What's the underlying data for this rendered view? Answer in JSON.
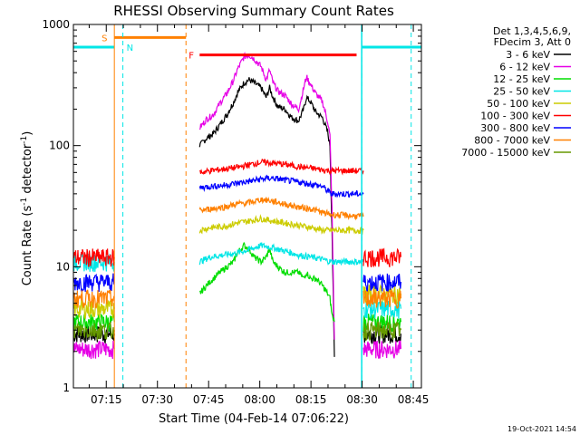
{
  "chart_data": {
    "type": "line",
    "title": "RHESSI Observing Summary Count Rates",
    "xlabel": "Start Time (04-Feb-14 07:06:22)",
    "ylabel_main": "Count Rate (s",
    "ylabel_sup1": "-1",
    "ylabel_mid": " detector",
    "ylabel_sup2": "-1",
    "ylabel_end": ")",
    "yscale": "log",
    "ylim": [
      1,
      1000
    ],
    "xlim_minutes": [
      0,
      102
    ],
    "x_ticks": [
      {
        "m": 9.63,
        "label": "07:15"
      },
      {
        "m": 24.63,
        "label": "07:30"
      },
      {
        "m": 39.63,
        "label": "07:45"
      },
      {
        "m": 54.63,
        "label": "08:00"
      },
      {
        "m": 69.63,
        "label": "08:15"
      },
      {
        "m": 84.63,
        "label": "08:30"
      },
      {
        "m": 99.63,
        "label": "08:45"
      }
    ],
    "y_ticks": [
      {
        "v": 1,
        "label": "1"
      },
      {
        "v": 10,
        "label": "10"
      },
      {
        "v": 100,
        "label": "100"
      },
      {
        "v": 1000,
        "label": "1000"
      }
    ],
    "legend_header": [
      "Det 1,3,4,5,6,9,",
      "FDecim 3, Att 0"
    ],
    "legend_placement": "right",
    "series": [
      {
        "name": "3 - 6 keV",
        "color": "#000000",
        "points": [
          [
            37,
            100
          ],
          [
            39,
            115
          ],
          [
            41,
            125
          ],
          [
            43,
            150
          ],
          [
            45,
            180
          ],
          [
            47,
            230
          ],
          [
            48,
            270
          ],
          [
            50,
            330
          ],
          [
            51.5,
            350
          ],
          [
            53,
            330
          ],
          [
            55,
            300
          ],
          [
            56.5,
            250
          ],
          [
            57.5,
            300
          ],
          [
            58.5,
            250
          ],
          [
            60,
            210
          ],
          [
            62,
            200
          ],
          [
            64,
            170
          ],
          [
            66,
            160
          ],
          [
            67.5,
            200
          ],
          [
            68.3,
            250
          ],
          [
            69.5,
            230
          ],
          [
            71,
            190
          ],
          [
            73,
            170
          ],
          [
            74.5,
            130
          ],
          [
            75.2,
            100
          ],
          [
            75.8,
            20
          ],
          [
            76.5,
            1.8
          ]
        ],
        "pre": {
          "range": [
            0,
            12
          ],
          "level": 2.8
        },
        "post": {
          "range": [
            85,
            96
          ],
          "level": 2.8
        }
      },
      {
        "name": "6 - 12 keV",
        "color": "#e600e6",
        "points": [
          [
            37,
            140
          ],
          [
            39,
            165
          ],
          [
            41,
            180
          ],
          [
            43,
            225
          ],
          [
            45,
            270
          ],
          [
            47,
            350
          ],
          [
            48,
            420
          ],
          [
            50,
            540
          ],
          [
            51.5,
            560
          ],
          [
            53,
            520
          ],
          [
            55,
            450
          ],
          [
            56.5,
            350
          ],
          [
            57.5,
            420
          ],
          [
            58.5,
            330
          ],
          [
            60,
            280
          ],
          [
            62,
            260
          ],
          [
            64,
            220
          ],
          [
            66,
            200
          ],
          [
            67.5,
            300
          ],
          [
            68.3,
            370
          ],
          [
            69.5,
            320
          ],
          [
            71,
            270
          ],
          [
            73,
            230
          ],
          [
            74.5,
            160
          ],
          [
            75.2,
            120
          ],
          [
            75.8,
            30
          ],
          [
            76.5,
            2.5
          ]
        ],
        "pre": {
          "range": [
            0,
            12
          ],
          "level": 2.1
        },
        "post": {
          "range": [
            85,
            96
          ],
          "level": 2.1
        }
      },
      {
        "name": "12 - 25 keV",
        "color": "#00dd00",
        "points": [
          [
            37,
            6
          ],
          [
            39,
            7
          ],
          [
            41,
            8
          ],
          [
            43,
            9
          ],
          [
            45,
            10
          ],
          [
            47,
            11
          ],
          [
            48,
            13
          ],
          [
            50,
            15
          ],
          [
            51.5,
            14
          ],
          [
            53,
            12
          ],
          [
            55,
            11
          ],
          [
            56.5,
            12
          ],
          [
            57.5,
            14
          ],
          [
            58.5,
            11
          ],
          [
            60,
            10
          ],
          [
            62,
            9
          ],
          [
            64,
            9
          ],
          [
            66,
            9
          ],
          [
            67.5,
            8
          ],
          [
            68.3,
            9
          ],
          [
            69.5,
            8
          ],
          [
            71,
            8
          ],
          [
            73,
            7
          ],
          [
            74.5,
            6
          ],
          [
            75.2,
            5.5
          ],
          [
            75.8,
            4
          ],
          [
            76.5,
            3.5
          ]
        ],
        "pre": {
          "range": [
            0,
            12
          ],
          "level": 3.5
        },
        "post": {
          "range": [
            85,
            96
          ],
          "level": 3.5
        }
      },
      {
        "name": "25 - 50 keV",
        "color": "#00e6e6",
        "points": [
          [
            37,
            11
          ],
          [
            40,
            12
          ],
          [
            44,
            12.5
          ],
          [
            48,
            13
          ],
          [
            52,
            14
          ],
          [
            55,
            15
          ],
          [
            58,
            14.5
          ],
          [
            62,
            13.5
          ],
          [
            66,
            12.5
          ],
          [
            70,
            12
          ],
          [
            73,
            11.5
          ],
          [
            75.5,
            11
          ],
          [
            76,
            11
          ],
          [
            85,
            11
          ]
        ],
        "pre": {
          "range": [
            0,
            12
          ],
          "level": 11
        },
        "post": {
          "range": [
            85,
            96
          ],
          "level": 4.5
        }
      },
      {
        "name": "50 - 100 keV",
        "color": "#cccc00",
        "points": [
          [
            37,
            20
          ],
          [
            40,
            21
          ],
          [
            44,
            21.5
          ],
          [
            48,
            23
          ],
          [
            52,
            24
          ],
          [
            55,
            25
          ],
          [
            58,
            24
          ],
          [
            62,
            23
          ],
          [
            66,
            22
          ],
          [
            70,
            21
          ],
          [
            73,
            20
          ],
          [
            75.5,
            20
          ],
          [
            85,
            20
          ]
        ],
        "pre": {
          "range": [
            0,
            12
          ],
          "level": 4.5
        },
        "post": {
          "range": [
            85,
            96
          ],
          "level": 6
        }
      },
      {
        "name": "100 - 300 keV",
        "color": "#ff0000",
        "points": [
          [
            37,
            60
          ],
          [
            40,
            62
          ],
          [
            44,
            64
          ],
          [
            48,
            66
          ],
          [
            52,
            70
          ],
          [
            55,
            73
          ],
          [
            58,
            72
          ],
          [
            62,
            70
          ],
          [
            66,
            67
          ],
          [
            70,
            65
          ],
          [
            73,
            63
          ],
          [
            75.5,
            62
          ],
          [
            85,
            62
          ]
        ],
        "pre": {
          "range": [
            0,
            12
          ],
          "level": 12
        },
        "post": {
          "range": [
            85,
            96
          ],
          "level": 12
        }
      },
      {
        "name": "300 - 800 keV",
        "color": "#0000ff",
        "points": [
          [
            37,
            45
          ],
          [
            40,
            46
          ],
          [
            44,
            47
          ],
          [
            48,
            49
          ],
          [
            52,
            51
          ],
          [
            55,
            53
          ],
          [
            58,
            54
          ],
          [
            62,
            52
          ],
          [
            66,
            50
          ],
          [
            70,
            48
          ],
          [
            73,
            46
          ],
          [
            75.5,
            40
          ],
          [
            85,
            40
          ]
        ],
        "pre": {
          "range": [
            0,
            12
          ],
          "level": 7.5
        },
        "post": {
          "range": [
            85,
            96
          ],
          "level": 7.5
        }
      },
      {
        "name": "800 - 7000 keV",
        "color": "#ff8000",
        "points": [
          [
            37,
            29
          ],
          [
            40,
            30
          ],
          [
            44,
            31
          ],
          [
            48,
            33
          ],
          [
            52,
            34
          ],
          [
            55,
            36
          ],
          [
            58,
            35
          ],
          [
            62,
            33
          ],
          [
            66,
            31
          ],
          [
            70,
            30
          ],
          [
            73,
            28
          ],
          [
            75.5,
            27
          ],
          [
            85,
            26
          ]
        ],
        "pre": {
          "range": [
            0,
            12
          ],
          "level": 5.5
        },
        "post": {
          "range": [
            85,
            96
          ],
          "level": 5.5
        }
      },
      {
        "name": "7000 - 15000 keV",
        "color": "#669900",
        "points": [],
        "pre": {
          "range": [
            0,
            12
          ],
          "level": 3
        },
        "post": {
          "range": [
            85,
            96
          ],
          "level": 3
        }
      }
    ],
    "annotations": {
      "saa": {
        "label": "S",
        "color": "#ff8000",
        "start": 12,
        "end": 33,
        "vline": 33
      },
      "night": {
        "label": "N",
        "color": "#00e6e6",
        "vlines": [
          14.5,
          84.5,
          99
        ]
      },
      "flare": {
        "label": "F",
        "color": "#ff0000",
        "start": 37,
        "end": 83
      },
      "cyan_bars": [
        [
          0,
          12
        ],
        [
          84.5,
          102
        ]
      ]
    }
  },
  "footer": {
    "timestamp": "19-Oct-2021 14:54"
  }
}
